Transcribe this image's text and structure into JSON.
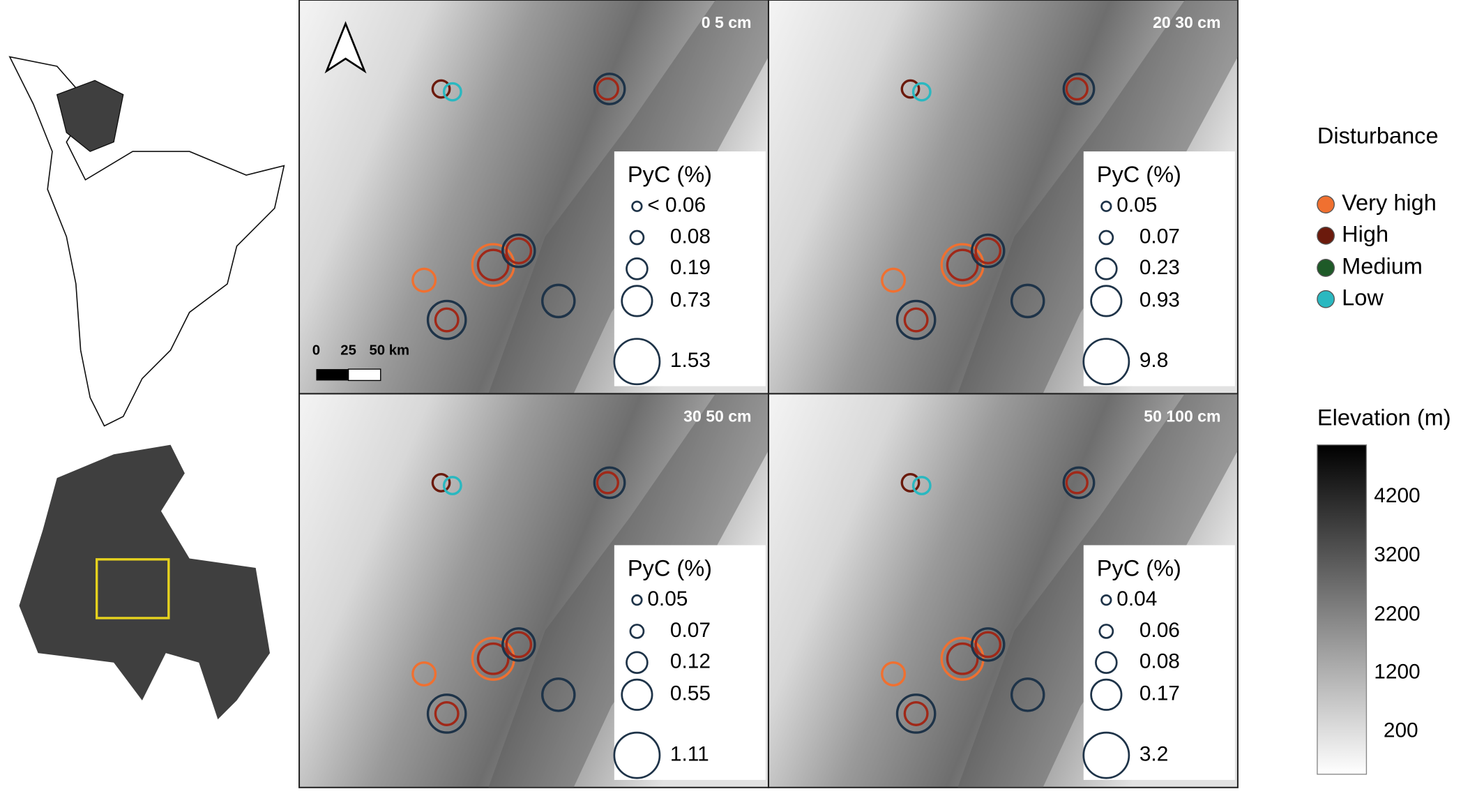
{
  "panels": [
    {
      "depth": "0 5 cm",
      "legend": {
        "title": "PyC (%)",
        "values": [
          "< 0.06",
          "0.08",
          "0.19",
          "0.73",
          "1.53"
        ]
      }
    },
    {
      "depth": "20 30 cm",
      "legend": {
        "title": "PyC (%)",
        "values": [
          "0.05",
          "0.07",
          "0.23",
          "0.93",
          "9.8"
        ]
      }
    },
    {
      "depth": "30 50 cm",
      "legend": {
        "title": "PyC (%)",
        "values": [
          "0.05",
          "0.07",
          "0.12",
          "0.55",
          "1.11"
        ]
      }
    },
    {
      "depth": "50 100 cm",
      "legend": {
        "title": "PyC (%)",
        "values": [
          "0.04",
          "0.06",
          "0.08",
          "0.17",
          "3.2"
        ]
      }
    }
  ],
  "scale_bar": [
    "0",
    "25",
    "50 km"
  ],
  "disturbance_legend": {
    "title": "Disturbance",
    "items": [
      "Very high",
      "High",
      "Medium",
      "Low"
    ]
  },
  "elevation_legend": {
    "title": "Elevation (m)",
    "ticks": [
      "4200",
      "3200",
      "2200",
      "1200",
      "200"
    ]
  }
}
